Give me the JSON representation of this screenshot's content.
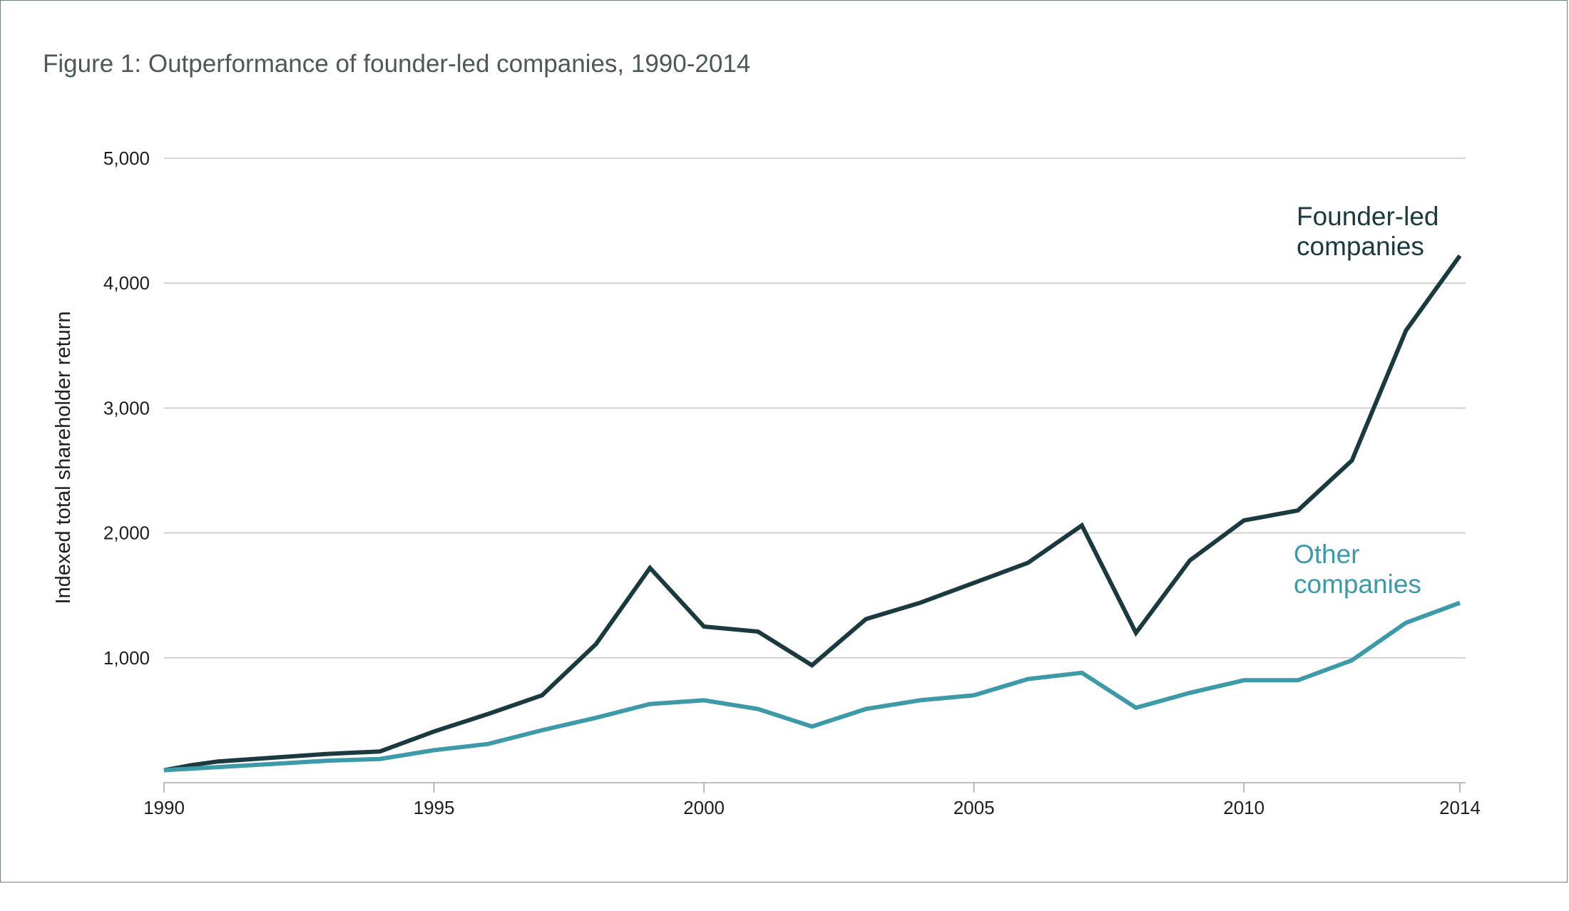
{
  "title": "Figure 1: Outperformance of founder-led companies, 1990-2014",
  "chart_data": {
    "type": "line",
    "title": "Figure 1: Outperformance of founder-led companies, 1990-2014",
    "xlabel": "",
    "ylabel": "Indexed total shareholder return",
    "xlim": [
      1990,
      2014
    ],
    "ylim": [
      0,
      5000
    ],
    "x_ticks": [
      "1990",
      "1995",
      "2000",
      "2005",
      "2010",
      "2014"
    ],
    "y_ticks": [
      "1,000",
      "2,000",
      "3,000",
      "4,000",
      "5,000"
    ],
    "grid": true,
    "legend": "inline labels at right",
    "series": [
      {
        "name": "Founder-led companies",
        "name_lines": [
          "Founder-led",
          "companies"
        ],
        "color": "#1b3a40",
        "x": [
          1990,
          1990.5,
          1991,
          1992,
          1993,
          1994,
          1995,
          1996,
          1997,
          1998,
          1999,
          2000,
          2001,
          2002,
          2003,
          2004,
          2005,
          2006,
          2007,
          2008,
          2009,
          2010,
          2011,
          2012,
          2013,
          2013.5,
          2014
        ],
        "y": [
          100,
          140,
          170,
          200,
          230,
          250,
          410,
          550,
          700,
          1110,
          1720,
          1250,
          1210,
          940,
          1310,
          1440,
          1600,
          1760,
          2060,
          1200,
          1780,
          2100,
          2180,
          2580,
          3620,
          3920,
          4220
        ]
      },
      {
        "name": "Other companies",
        "name_lines": [
          "Other",
          "companies"
        ],
        "color": "#3d9aa8",
        "x": [
          1990,
          1991,
          1992,
          1993,
          1994,
          1995,
          1996,
          1997,
          1998,
          1999,
          2000,
          2001,
          2002,
          2003,
          2004,
          2005,
          2006,
          2007,
          2008,
          2009,
          2010,
          2011,
          2012,
          2013,
          2014
        ],
        "y": [
          100,
          125,
          150,
          175,
          190,
          260,
          310,
          420,
          520,
          630,
          660,
          590,
          450,
          590,
          660,
          700,
          830,
          880,
          600,
          720,
          820,
          820,
          980,
          1280,
          1440
        ]
      }
    ]
  }
}
